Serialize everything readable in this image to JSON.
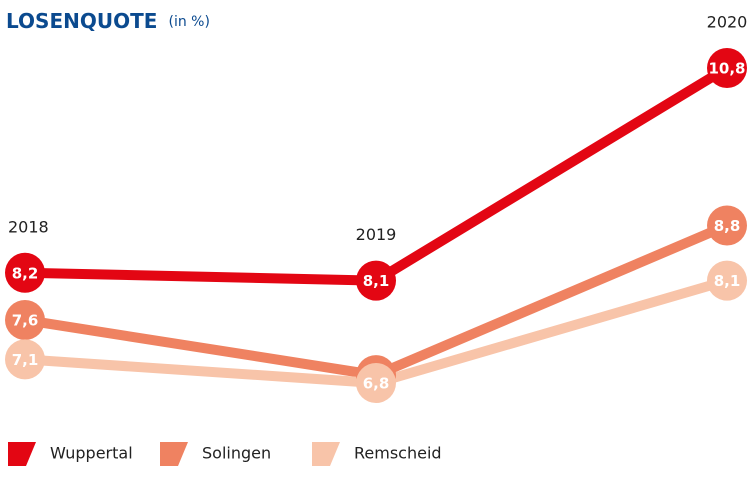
{
  "chart_data": {
    "type": "line",
    "title": "LOSENQUOTE",
    "subtitle": "(in %)",
    "categories": [
      "2018",
      "2019",
      "2020"
    ],
    "series": [
      {
        "name": "Wuppertal",
        "color": "#e30613",
        "values": [
          8.2,
          8.1,
          10.8
        ],
        "value_labels": [
          "8,2",
          "8,1",
          "10,8"
        ]
      },
      {
        "name": "Solingen",
        "color": "#ef8261",
        "values": [
          7.6,
          6.9,
          8.8
        ],
        "value_labels": [
          "7,6",
          "6,9",
          "8,8"
        ]
      },
      {
        "name": "Remscheid",
        "color": "#f8c4a9",
        "values": [
          7.1,
          6.8,
          8.1
        ],
        "value_labels": [
          "7,1",
          "6,8",
          "8,1"
        ]
      }
    ]
  }
}
